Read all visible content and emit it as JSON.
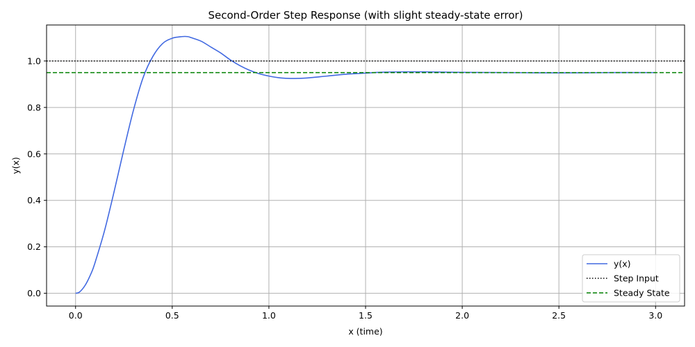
{
  "chart_data": {
    "type": "line",
    "title": "Second-Order Step Response (with slight steady-state error)",
    "xlabel": "x (time)",
    "ylabel": "y(x)",
    "xlim": [
      -0.15,
      3.15
    ],
    "ylim": [
      -0.055,
      1.155
    ],
    "xticks": [
      0.0,
      0.5,
      1.0,
      1.5,
      2.0,
      2.5,
      3.0
    ],
    "xtick_labels": [
      "0.0",
      "0.5",
      "1.0",
      "1.5",
      "2.0",
      "2.5",
      "3.0"
    ],
    "yticks": [
      0.0,
      0.2,
      0.4,
      0.6,
      0.8,
      1.0
    ],
    "ytick_labels": [
      "0.0",
      "0.2",
      "0.4",
      "0.6",
      "0.8",
      "1.0"
    ],
    "grid": true,
    "legend_position": "bottom-right",
    "series": [
      {
        "name": "y(x)",
        "color": "#4169e1",
        "style": "solid",
        "x": [
          0.0,
          0.02,
          0.05,
          0.08,
          0.1,
          0.15,
          0.2,
          0.25,
          0.3,
          0.35,
          0.4,
          0.45,
          0.5,
          0.55,
          0.58,
          0.6,
          0.65,
          0.7,
          0.75,
          0.8,
          0.85,
          0.9,
          0.95,
          1.0,
          1.05,
          1.1,
          1.15,
          1.2,
          1.3,
          1.4,
          1.5,
          1.6,
          1.7,
          1.8,
          1.9,
          2.0,
          2.25,
          2.5,
          2.75,
          3.0
        ],
        "y": [
          0.0,
          0.005,
          0.035,
          0.085,
          0.13,
          0.27,
          0.44,
          0.62,
          0.79,
          0.93,
          1.02,
          1.075,
          1.098,
          1.105,
          1.105,
          1.1,
          1.085,
          1.06,
          1.035,
          1.005,
          0.98,
          0.96,
          0.945,
          0.935,
          0.928,
          0.925,
          0.925,
          0.927,
          0.935,
          0.943,
          0.948,
          0.952,
          0.953,
          0.953,
          0.952,
          0.951,
          0.95,
          0.949,
          0.95,
          0.95
        ]
      },
      {
        "name": "Step Input",
        "color": "#000000",
        "style": "dotted",
        "x": [
          -0.15,
          3.15
        ],
        "y": [
          1.0,
          1.0
        ]
      },
      {
        "name": "Steady State",
        "color": "#008000",
        "style": "dashed",
        "x": [
          -0.15,
          3.15
        ],
        "y": [
          0.95,
          0.95
        ]
      }
    ]
  }
}
